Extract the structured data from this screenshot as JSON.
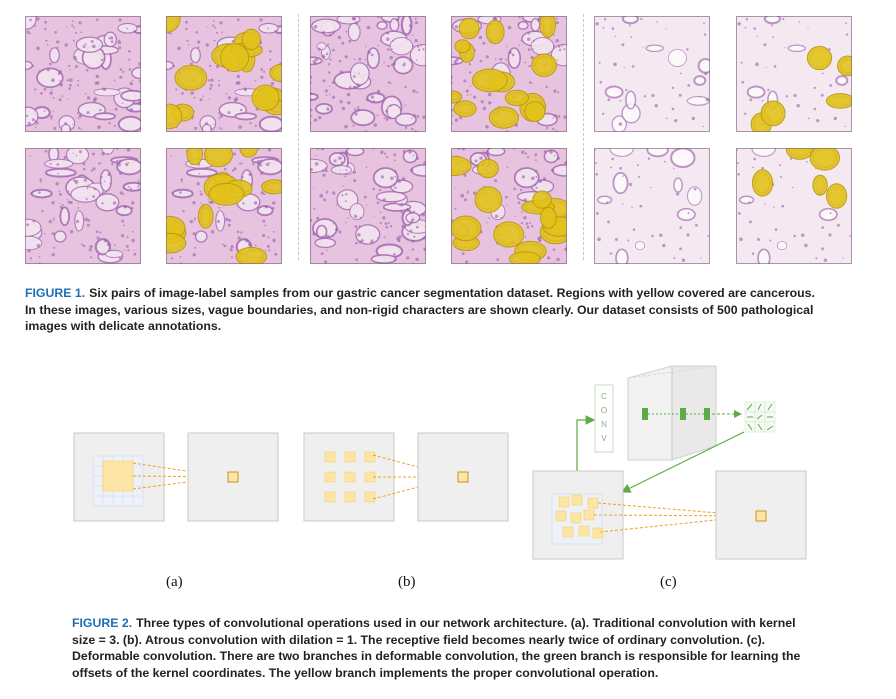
{
  "figure1": {
    "label": "FIGURE 1.",
    "caption": "Six pairs of image-label samples from our gastric cancer segmentation dataset. Regions with yellow covered are cancerous. In these images, various sizes, vague boundaries, and non-rigid characters are shown clearly. Our dataset consists of 500 pathological images with delicate annotations."
  },
  "figure2": {
    "label": "FIGURE 2.",
    "caption": "Three types of convolutional operations used in our network architecture. (a). Traditional convolution with kernel size = 3. (b). Atrous convolution with dilation = 1. The receptive field becomes nearly twice of ordinary convolution. (c). Deformable convolution. There are two branches in deformable convolution, the green branch is responsible for learning the offsets of the kernel coordinates. The yellow branch implements the proper convolutional operation.",
    "panels": [
      "(a)",
      "(b)",
      "(c)"
    ],
    "conv_letters": [
      "C",
      "O",
      "N",
      "V"
    ]
  },
  "colors": {
    "caption_label": "#1f6fb6",
    "tissue_pink": "#e7c3df",
    "nuclei_purple": "#a970b5",
    "cancer_yellow": "#e2c21a",
    "kernel_yellow": "#fde6a5",
    "offset_green": "#5daa47",
    "arrow_orange": "#f0a020"
  }
}
